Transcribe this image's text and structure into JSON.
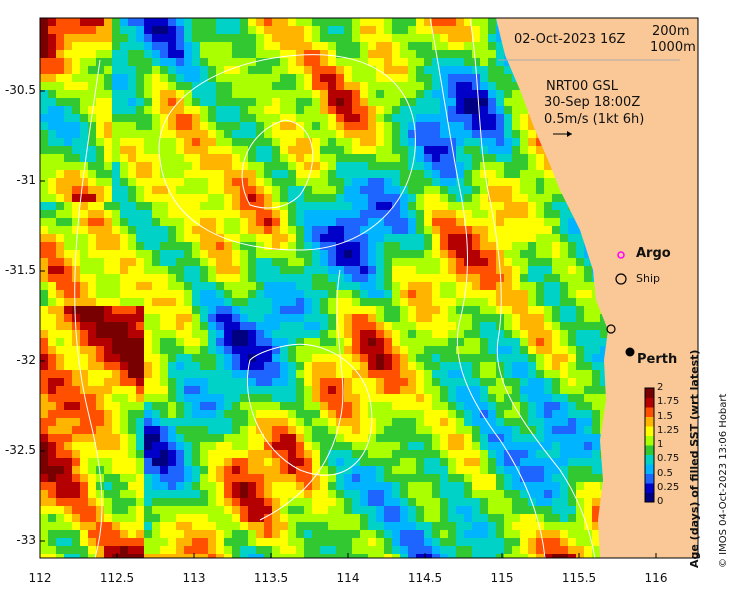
{
  "map": {
    "date": "02-Oct-2023 16Z",
    "contours": [
      "200m",
      "1000m"
    ],
    "current_title": "NRT00 GSL",
    "current_time": "30-Sep 18:00Z",
    "current_scale": "0.5m/s (1kt 6h)",
    "argo_label": "Argo",
    "ship_label": "Ship",
    "city_label": "Perth",
    "colorbar_title": "Age (days) of filled SST (wrt latest)",
    "colorbar_ticks": [
      "2",
      "1.75",
      "1.5",
      "1.25",
      "1",
      "0.75",
      "0.5",
      "0.25",
      "0"
    ],
    "credit": "© IMOS 04-Oct-2023 13:06 Hobart",
    "y_ticks": [
      "-30.5",
      "-31",
      "-31.5",
      "-32",
      "-32.5",
      "-33"
    ],
    "x_ticks": [
      "112",
      "112.5",
      "113",
      "113.5",
      "114",
      "114.5",
      "115",
      "115.5",
      "116"
    ],
    "colors": {
      "land": "#f9c896",
      "palette": [
        "#000080",
        "#0000c8",
        "#1e64ff",
        "#00b4ff",
        "#00d2c8",
        "#32c832",
        "#aaff00",
        "#ffff00",
        "#ffb400",
        "#ff5000",
        "#b40000",
        "#780000"
      ]
    }
  }
}
